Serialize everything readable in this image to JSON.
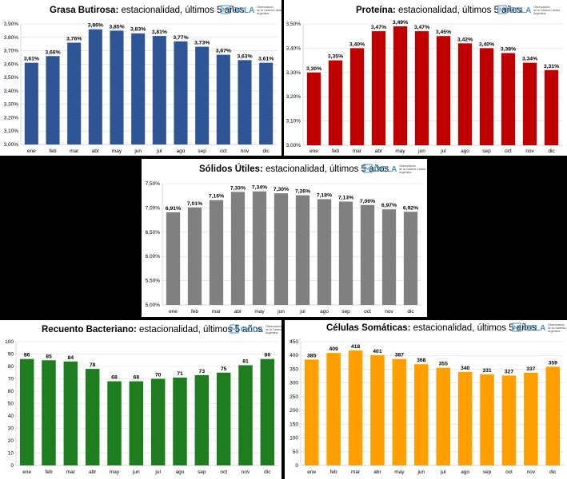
{
  "logo": {
    "brand": "OCLA",
    "line1": "Observatorio",
    "line2": "de la Cadena Láctea",
    "line3": "Argentina",
    "color": "#4a90c8"
  },
  "chart_data": [
    {
      "type": "bar",
      "title_bold": "Grasa Butirosa:",
      "title_rest": " estacionalidad, últimos 5 años",
      "categories": [
        "ene",
        "feb",
        "mar",
        "abr",
        "may",
        "jun",
        "jul",
        "ago",
        "sep",
        "oct",
        "nov",
        "dic"
      ],
      "values": [
        3.61,
        3.66,
        3.76,
        3.86,
        3.85,
        3.83,
        3.81,
        3.77,
        3.73,
        3.67,
        3.63,
        3.61
      ],
      "value_labels": [
        "3,61%",
        "3,66%",
        "3,76%",
        "3,86%",
        "3,85%",
        "3,83%",
        "3,81%",
        "3,77%",
        "3,73%",
        "3,67%",
        "3,63%",
        "3,61%"
      ],
      "yticks": [
        3.0,
        3.1,
        3.2,
        3.3,
        3.4,
        3.5,
        3.6,
        3.7,
        3.8,
        3.9
      ],
      "ytick_labels": [
        "3,00%",
        "3,10%",
        "3,20%",
        "3,30%",
        "3,40%",
        "3,50%",
        "3,60%",
        "3,70%",
        "3,80%",
        "3,90%"
      ],
      "ylim": [
        3.0,
        3.9
      ],
      "grid": true,
      "color": "#2f5597"
    },
    {
      "type": "bar",
      "title_bold": "Proteína:",
      "title_rest": " estacionalidad, últimos 5 años",
      "categories": [
        "ene",
        "feb",
        "mar",
        "abr",
        "may",
        "jun",
        "jul",
        "ago",
        "sep",
        "oct",
        "nov",
        "dic"
      ],
      "values": [
        3.3,
        3.35,
        3.4,
        3.47,
        3.49,
        3.47,
        3.45,
        3.42,
        3.4,
        3.38,
        3.34,
        3.31
      ],
      "value_labels": [
        "3,30%",
        "3,35%",
        "3,40%",
        "3,47%",
        "3,49%",
        "3,47%",
        "3,45%",
        "3,42%",
        "3,40%",
        "3,38%",
        "3,34%",
        "3,31%"
      ],
      "yticks": [
        3.0,
        3.1,
        3.2,
        3.3,
        3.4,
        3.5
      ],
      "ytick_labels": [
        "3,00%",
        "3,10%",
        "3,20%",
        "3,30%",
        "3,40%",
        "3,50%"
      ],
      "ylim": [
        3.0,
        3.5
      ],
      "grid": true,
      "color": "#c00000"
    },
    {
      "type": "bar",
      "title_bold": "Sólidos Útiles:",
      "title_rest": " estacionalidad, últimos 5 años",
      "categories": [
        "ene",
        "feb",
        "mar",
        "abr",
        "may",
        "jun",
        "jul",
        "ago",
        "sep",
        "oct",
        "nov",
        "dic"
      ],
      "values": [
        6.91,
        7.01,
        7.16,
        7.33,
        7.34,
        7.3,
        7.26,
        7.18,
        7.13,
        7.06,
        6.97,
        6.92
      ],
      "value_labels": [
        "6,91%",
        "7,01%",
        "7,16%",
        "7,33%",
        "7,34%",
        "7,30%",
        "7,26%",
        "7,18%",
        "7,13%",
        "7,06%",
        "6,97%",
        "6,92%"
      ],
      "yticks": [
        5.0,
        5.5,
        6.0,
        6.5,
        7.0,
        7.5
      ],
      "ytick_labels": [
        "5,00%",
        "5,50%",
        "6,00%",
        "6,50%",
        "7,00%",
        "7,50%"
      ],
      "ylim": [
        5.0,
        7.5
      ],
      "grid": true,
      "color": "#808080"
    },
    {
      "type": "bar",
      "title_bold": "Recuento Bacteriano:",
      "title_rest": " estacionalidad, últimos 5 años",
      "categories": [
        "ene",
        "feb",
        "mar",
        "abr",
        "may",
        "jun",
        "jul",
        "ago",
        "sep",
        "oct",
        "nov",
        "dic"
      ],
      "values": [
        86,
        85,
        84,
        78,
        68,
        68,
        70,
        71,
        73,
        75,
        81,
        86
      ],
      "value_labels": [
        "86",
        "85",
        "84",
        "78",
        "68",
        "68",
        "70",
        "71",
        "73",
        "75",
        "81",
        "86"
      ],
      "yticks": [
        0,
        10,
        20,
        30,
        40,
        50,
        60,
        70,
        80,
        90,
        100
      ],
      "ytick_labels": [
        "0",
        "10",
        "20",
        "30",
        "40",
        "50",
        "60",
        "70",
        "80",
        "90",
        "100"
      ],
      "ylim": [
        0,
        100
      ],
      "grid": true,
      "color": "#1e7d1e"
    },
    {
      "type": "bar",
      "title_bold": "Células Somáticas:",
      "title_rest": " estacionalidad, últimos 5 años",
      "categories": [
        "ene",
        "feb",
        "mar",
        "abr",
        "may",
        "jun",
        "jul",
        "ago",
        "sep",
        "oct",
        "nov",
        "dic"
      ],
      "values": [
        385,
        409,
        418,
        401,
        387,
        368,
        355,
        340,
        331,
        327,
        337,
        359
      ],
      "value_labels": [
        "385",
        "409",
        "418",
        "401",
        "387",
        "368",
        "355",
        "340",
        "331",
        "327",
        "337",
        "359"
      ],
      "yticks": [
        0,
        50,
        100,
        150,
        200,
        250,
        300,
        350,
        400,
        450
      ],
      "ytick_labels": [
        "0",
        "50",
        "100",
        "150",
        "200",
        "250",
        "300",
        "350",
        "400",
        "450"
      ],
      "ylim": [
        0,
        450
      ],
      "grid": true,
      "color": "#ffa000"
    }
  ]
}
